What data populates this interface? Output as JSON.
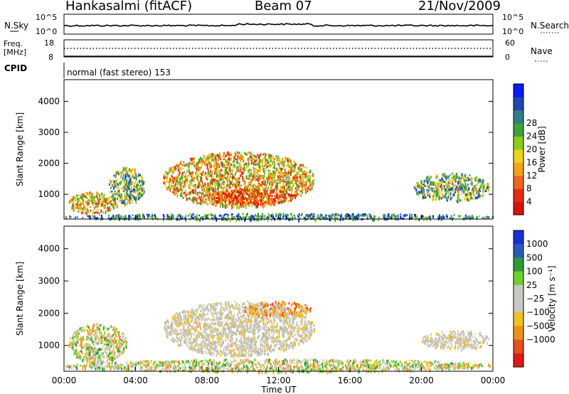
{
  "header": {
    "radar": "Hankasalmi (fitACF)",
    "beam": "Beam 07",
    "date": "21/Nov/2009"
  },
  "top_strips": {
    "left_label_sky": "N.Sky",
    "left_tick_sky_top": "10^5",
    "left_tick_sky_bot": "10^0",
    "right_tick_search_top": "10^5",
    "right_tick_search_bot": "10^0",
    "right_label_search": "N.Search",
    "left_label_freq": "Freq.",
    "left_label_freq_unit": "[MHz]",
    "freq_tick_top": "18",
    "freq_tick_bot": "8",
    "right_tick_nave_top": "60",
    "right_tick_nave_bot": "0",
    "right_label_nave": "Nave",
    "cpid_label": "CPID",
    "cpid_value": "normal (fast stereo) 153"
  },
  "chart_data": [
    {
      "type": "heatmap",
      "name": "power",
      "ylabel": "Slant Range [km]",
      "yticks": [
        "1000",
        "2000",
        "3000",
        "4000"
      ],
      "ylim": [
        200,
        4700
      ],
      "colorbar_label": "Power [dB]",
      "colorbar_ticks": [
        "4",
        "8",
        "12",
        "16",
        "20",
        "24",
        "28"
      ],
      "colorbar_colors": [
        "#0a1cf0",
        "#2046b4",
        "#2f7f8a",
        "#3fa23a",
        "#8ccc1a",
        "#f0d21a",
        "#f3a21a",
        "#f0661a",
        "#e82a12",
        "#d81408"
      ],
      "echo_regions": [
        {
          "t": [
            0.2,
            3.0
          ],
          "range": [
            400,
            1100
          ],
          "level": "high"
        },
        {
          "t": [
            2.5,
            4.5
          ],
          "range": [
            700,
            1900
          ],
          "level": "mid"
        },
        {
          "t": [
            5.5,
            14.0
          ],
          "range": [
            600,
            2400
          ],
          "level": "high"
        },
        {
          "t": [
            8.0,
            13.0
          ],
          "range": [
            700,
            1200
          ],
          "level": "max"
        },
        {
          "t": [
            19.5,
            23.8
          ],
          "range": [
            800,
            1700
          ],
          "level": "mid"
        },
        {
          "t": [
            0.0,
            24.0
          ],
          "range": [
            200,
            400
          ],
          "level": "low"
        }
      ]
    },
    {
      "type": "heatmap",
      "name": "velocity",
      "xlabel": "Time UT",
      "xticks": [
        "00:00",
        "04:00",
        "08:00",
        "12:00",
        "16:00",
        "20:00",
        "00:00"
      ],
      "xlim_hours": [
        0,
        24
      ],
      "ylabel": "Slant Range [km]",
      "yticks": [
        "1000",
        "2000",
        "3000",
        "4000"
      ],
      "ylim": [
        200,
        4700
      ],
      "colorbar_label": "Velocity [m s⁻¹]",
      "colorbar_ticks": [
        "1000",
        "500",
        "100",
        "25",
        "−25",
        "−100",
        "−500",
        "−1000"
      ],
      "colorbar_colors": [
        "#1a2fd8",
        "#2a5ab8",
        "#2e9a3a",
        "#6ad42a",
        "#c8c8c0",
        "#c8c8c0",
        "#f4c01e",
        "#f0901a",
        "#e8501a",
        "#e01a12"
      ],
      "echo_regions": [
        {
          "t": [
            0.2,
            3.5
          ],
          "range": [
            500,
            1700
          ],
          "class": "mixed"
        },
        {
          "t": [
            5.5,
            14.0
          ],
          "range": [
            700,
            2400
          ],
          "class": "ground"
        },
        {
          "t": [
            10.0,
            13.8
          ],
          "range": [
            1900,
            2400
          ],
          "class": "away"
        },
        {
          "t": [
            20.0,
            23.8
          ],
          "range": [
            900,
            1500
          ],
          "class": "ground"
        },
        {
          "t": [
            0.0,
            24.0
          ],
          "range": [
            200,
            600
          ],
          "class": "mixed"
        }
      ]
    }
  ]
}
